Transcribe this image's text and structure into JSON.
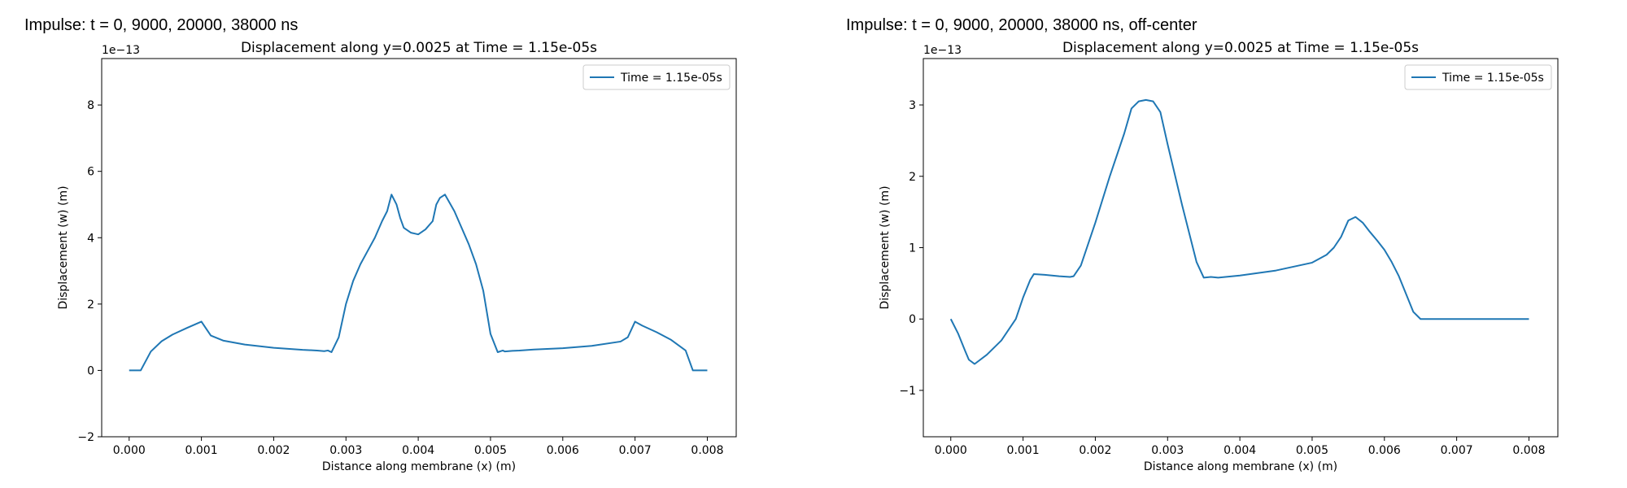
{
  "charts": [
    {
      "figure_title": "Impulse: t = 0, 9000, 20000, 38000 ns",
      "chart_data": {
        "type": "line",
        "title": "Displacement along y=0.0025 at Time = 1.15e-05s",
        "xlabel": "Distance along membrane (x) (m)",
        "ylabel": "Displacement (w) (m)",
        "y_offset_label": "1e−13",
        "xlim": [
          -0.00038,
          0.0084
        ],
        "ylim": [
          -2,
          9.4
        ],
        "xticks": [
          0.0,
          0.001,
          0.002,
          0.003,
          0.004,
          0.005,
          0.006,
          0.007,
          0.008
        ],
        "xtick_labels": [
          "0.000",
          "0.001",
          "0.002",
          "0.003",
          "0.004",
          "0.005",
          "0.006",
          "0.007",
          "0.008"
        ],
        "yticks": [
          -2,
          0,
          2,
          4,
          6,
          8
        ],
        "ytick_labels": [
          "−2",
          "0",
          "2",
          "4",
          "6",
          "8"
        ],
        "grid": false,
        "legend_position": "upper-right",
        "series": [
          {
            "name": "Time = 1.15e-05s",
            "color": "#1f77b4",
            "x": [
              0.0,
              0.00016,
              0.0003,
              0.00045,
              0.0006,
              0.0008,
              0.001,
              0.00113,
              0.0013,
              0.0016,
              0.002,
              0.0024,
              0.0026,
              0.0027,
              0.00275,
              0.0028,
              0.0029,
              0.003,
              0.0031,
              0.0032,
              0.0033,
              0.0034,
              0.0035,
              0.00357,
              0.00363,
              0.0037,
              0.00375,
              0.0038,
              0.0039,
              0.004,
              0.0041,
              0.0042,
              0.00425,
              0.0043,
              0.00437,
              0.0045,
              0.0046,
              0.0047,
              0.0048,
              0.0049,
              0.005,
              0.0051,
              0.00517,
              0.0052,
              0.0053,
              0.0054,
              0.0056,
              0.006,
              0.0064,
              0.0068,
              0.0069,
              0.007,
              0.0071,
              0.0073,
              0.0075,
              0.0077,
              0.0078,
              0.008
            ],
            "y": [
              0.0,
              0.0,
              0.57,
              0.88,
              1.08,
              1.28,
              1.47,
              1.05,
              0.9,
              0.78,
              0.68,
              0.62,
              0.6,
              0.58,
              0.6,
              0.55,
              1.0,
              2.0,
              2.7,
              3.2,
              3.6,
              4.0,
              4.5,
              4.8,
              5.3,
              5.0,
              4.6,
              4.3,
              4.15,
              4.1,
              4.25,
              4.5,
              5.0,
              5.2,
              5.3,
              4.8,
              4.3,
              3.8,
              3.2,
              2.4,
              1.1,
              0.55,
              0.6,
              0.57,
              0.59,
              0.6,
              0.63,
              0.67,
              0.74,
              0.87,
              1.0,
              1.47,
              1.35,
              1.15,
              0.92,
              0.6,
              0.0,
              0.0
            ]
          }
        ]
      }
    },
    {
      "figure_title": "Impulse: t = 0, 9000, 20000, 38000 ns, off-center",
      "chart_data": {
        "type": "line",
        "title": "Displacement along y=0.0025 at Time = 1.15e-05s",
        "xlabel": "Distance along membrane (x) (m)",
        "ylabel": "Displacement (w) (m)",
        "y_offset_label": "1e−13",
        "xlim": [
          -0.00038,
          0.0084
        ],
        "ylim": [
          -1.65,
          3.65
        ],
        "xticks": [
          0.0,
          0.001,
          0.002,
          0.003,
          0.004,
          0.005,
          0.006,
          0.007,
          0.008
        ],
        "xtick_labels": [
          "0.000",
          "0.001",
          "0.002",
          "0.003",
          "0.004",
          "0.005",
          "0.006",
          "0.007",
          "0.008"
        ],
        "yticks": [
          -1,
          0,
          1,
          2,
          3
        ],
        "ytick_labels": [
          "−1",
          "0",
          "1",
          "2",
          "3"
        ],
        "grid": false,
        "legend_position": "upper-right",
        "series": [
          {
            "name": "Time = 1.15e-05s",
            "color": "#1f77b4",
            "x": [
              0.0,
              0.0001,
              0.0002,
              0.00025,
              0.00033,
              0.0005,
              0.0007,
              0.0009,
              0.001,
              0.0011,
              0.00115,
              0.0013,
              0.0015,
              0.00165,
              0.0017,
              0.0018,
              0.002,
              0.0022,
              0.0024,
              0.0025,
              0.0026,
              0.0027,
              0.0028,
              0.0029,
              0.003,
              0.0032,
              0.0034,
              0.0035,
              0.0036,
              0.0037,
              0.004,
              0.0045,
              0.005,
              0.0052,
              0.0053,
              0.0054,
              0.0055,
              0.0056,
              0.0057,
              0.0058,
              0.0059,
              0.006,
              0.0061,
              0.0062,
              0.0063,
              0.0064,
              0.0065,
              0.0066,
              0.007,
              0.0075,
              0.008
            ],
            "y": [
              0.0,
              -0.2,
              -0.45,
              -0.57,
              -0.63,
              -0.5,
              -0.3,
              0.0,
              0.3,
              0.55,
              0.63,
              0.62,
              0.6,
              0.59,
              0.6,
              0.75,
              1.35,
              2.0,
              2.6,
              2.95,
              3.05,
              3.07,
              3.05,
              2.9,
              2.45,
              1.6,
              0.8,
              0.58,
              0.59,
              0.58,
              0.61,
              0.68,
              0.79,
              0.9,
              1.0,
              1.15,
              1.38,
              1.43,
              1.35,
              1.22,
              1.1,
              0.97,
              0.8,
              0.6,
              0.35,
              0.1,
              0.0,
              0.0,
              0.0,
              0.0,
              0.0
            ]
          }
        ]
      }
    }
  ]
}
